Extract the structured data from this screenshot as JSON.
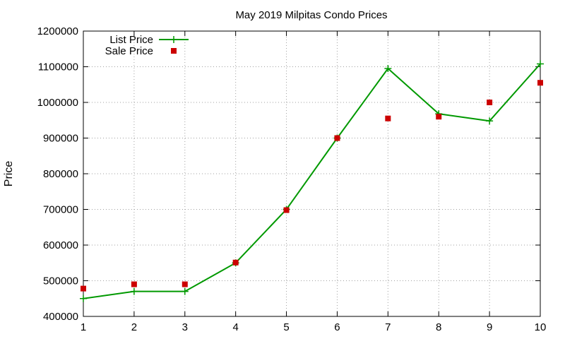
{
  "chart_data": {
    "type": "line",
    "title": "May 2019 Milpitas Condo Prices",
    "xlabel": "",
    "ylabel": "Price",
    "xlim": [
      1,
      10
    ],
    "ylim": [
      400000,
      1200000
    ],
    "x_ticks": [
      1,
      2,
      3,
      4,
      5,
      6,
      7,
      8,
      9,
      10
    ],
    "y_ticks": [
      400000,
      500000,
      600000,
      700000,
      800000,
      900000,
      1000000,
      1100000,
      1200000
    ],
    "grid": true,
    "legend_position": "top-left",
    "series": [
      {
        "name": "List Price",
        "style": "line-with-plus-markers",
        "color": "#009900",
        "x": [
          1,
          2,
          3,
          4,
          5,
          6,
          7,
          8,
          9,
          10
        ],
        "values": [
          450000,
          470000,
          470000,
          550000,
          700000,
          900000,
          1095000,
          968000,
          948000,
          1108000
        ]
      },
      {
        "name": "Sale Price",
        "style": "square-markers",
        "color": "#cc0000",
        "x": [
          1,
          2,
          3,
          4,
          5,
          6,
          7,
          8,
          9,
          10
        ],
        "values": [
          478000,
          490000,
          490000,
          551000,
          698000,
          900000,
          955000,
          960000,
          1000000,
          1055000
        ]
      }
    ]
  }
}
